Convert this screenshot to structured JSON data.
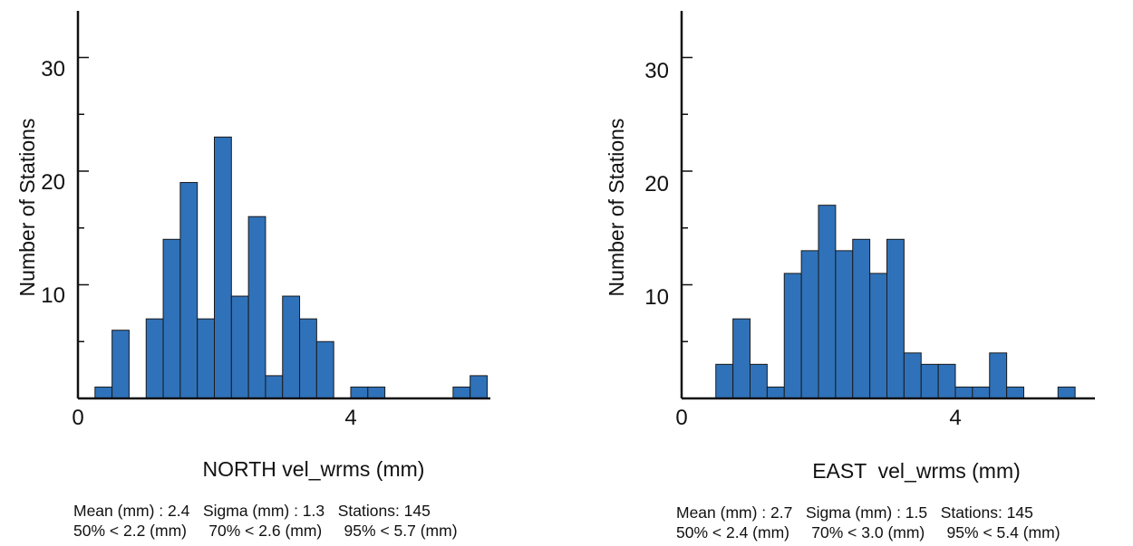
{
  "chart_data": [
    {
      "type": "bar",
      "xlabel": "NORTH vel_wrms (mm)",
      "ylabel": "Number of Stations",
      "x_ticks": [
        "0",
        "4"
      ],
      "y_ticks": [
        "10",
        "20",
        "30"
      ],
      "xlim": [
        0,
        6
      ],
      "ylim": [
        0,
        34
      ],
      "bin_width": 0.25,
      "bin_starts": [
        0.25,
        0.5,
        1.0,
        1.25,
        1.5,
        1.75,
        2.0,
        2.25,
        2.5,
        2.75,
        3.0,
        3.25,
        3.5,
        4.0,
        4.25,
        5.5,
        5.75
      ],
      "values": [
        1,
        6,
        7,
        14,
        19,
        7,
        23,
        9,
        16,
        2,
        9,
        7,
        5,
        1,
        1,
        1,
        2
      ],
      "stats_line1": "Mean (mm) : 2.4   Sigma (mm) : 1.3   Stations: 145",
      "stats_line2": "50% < 2.2 (mm)     70% < 2.6 (mm)     95% < 5.7 (mm)",
      "bar_color": "#2f72ba"
    },
    {
      "type": "bar",
      "xlabel": "EAST  vel_wrms (mm)",
      "ylabel": "Number of Stations",
      "x_ticks": [
        "0",
        "4"
      ],
      "y_ticks": [
        "10",
        "20",
        "30"
      ],
      "xlim": [
        0,
        6
      ],
      "ylim": [
        0,
        34
      ],
      "bin_width": 0.25,
      "bin_starts": [
        0.5,
        0.75,
        1.0,
        1.25,
        1.5,
        1.75,
        2.0,
        2.25,
        2.5,
        2.75,
        3.0,
        3.25,
        3.5,
        3.75,
        4.0,
        4.25,
        4.5,
        4.75,
        5.5
      ],
      "values": [
        3,
        7,
        3,
        1,
        11,
        13,
        17,
        13,
        14,
        11,
        14,
        4,
        3,
        3,
        1,
        1,
        4,
        1,
        1
      ],
      "stats_line1": "Mean (mm) : 2.7   Sigma (mm) : 1.5   Stations: 145",
      "stats_line2": "50% < 2.4 (mm)     70% < 3.0 (mm)     95% < 5.4 (mm)",
      "bar_color": "#2f72ba"
    }
  ]
}
